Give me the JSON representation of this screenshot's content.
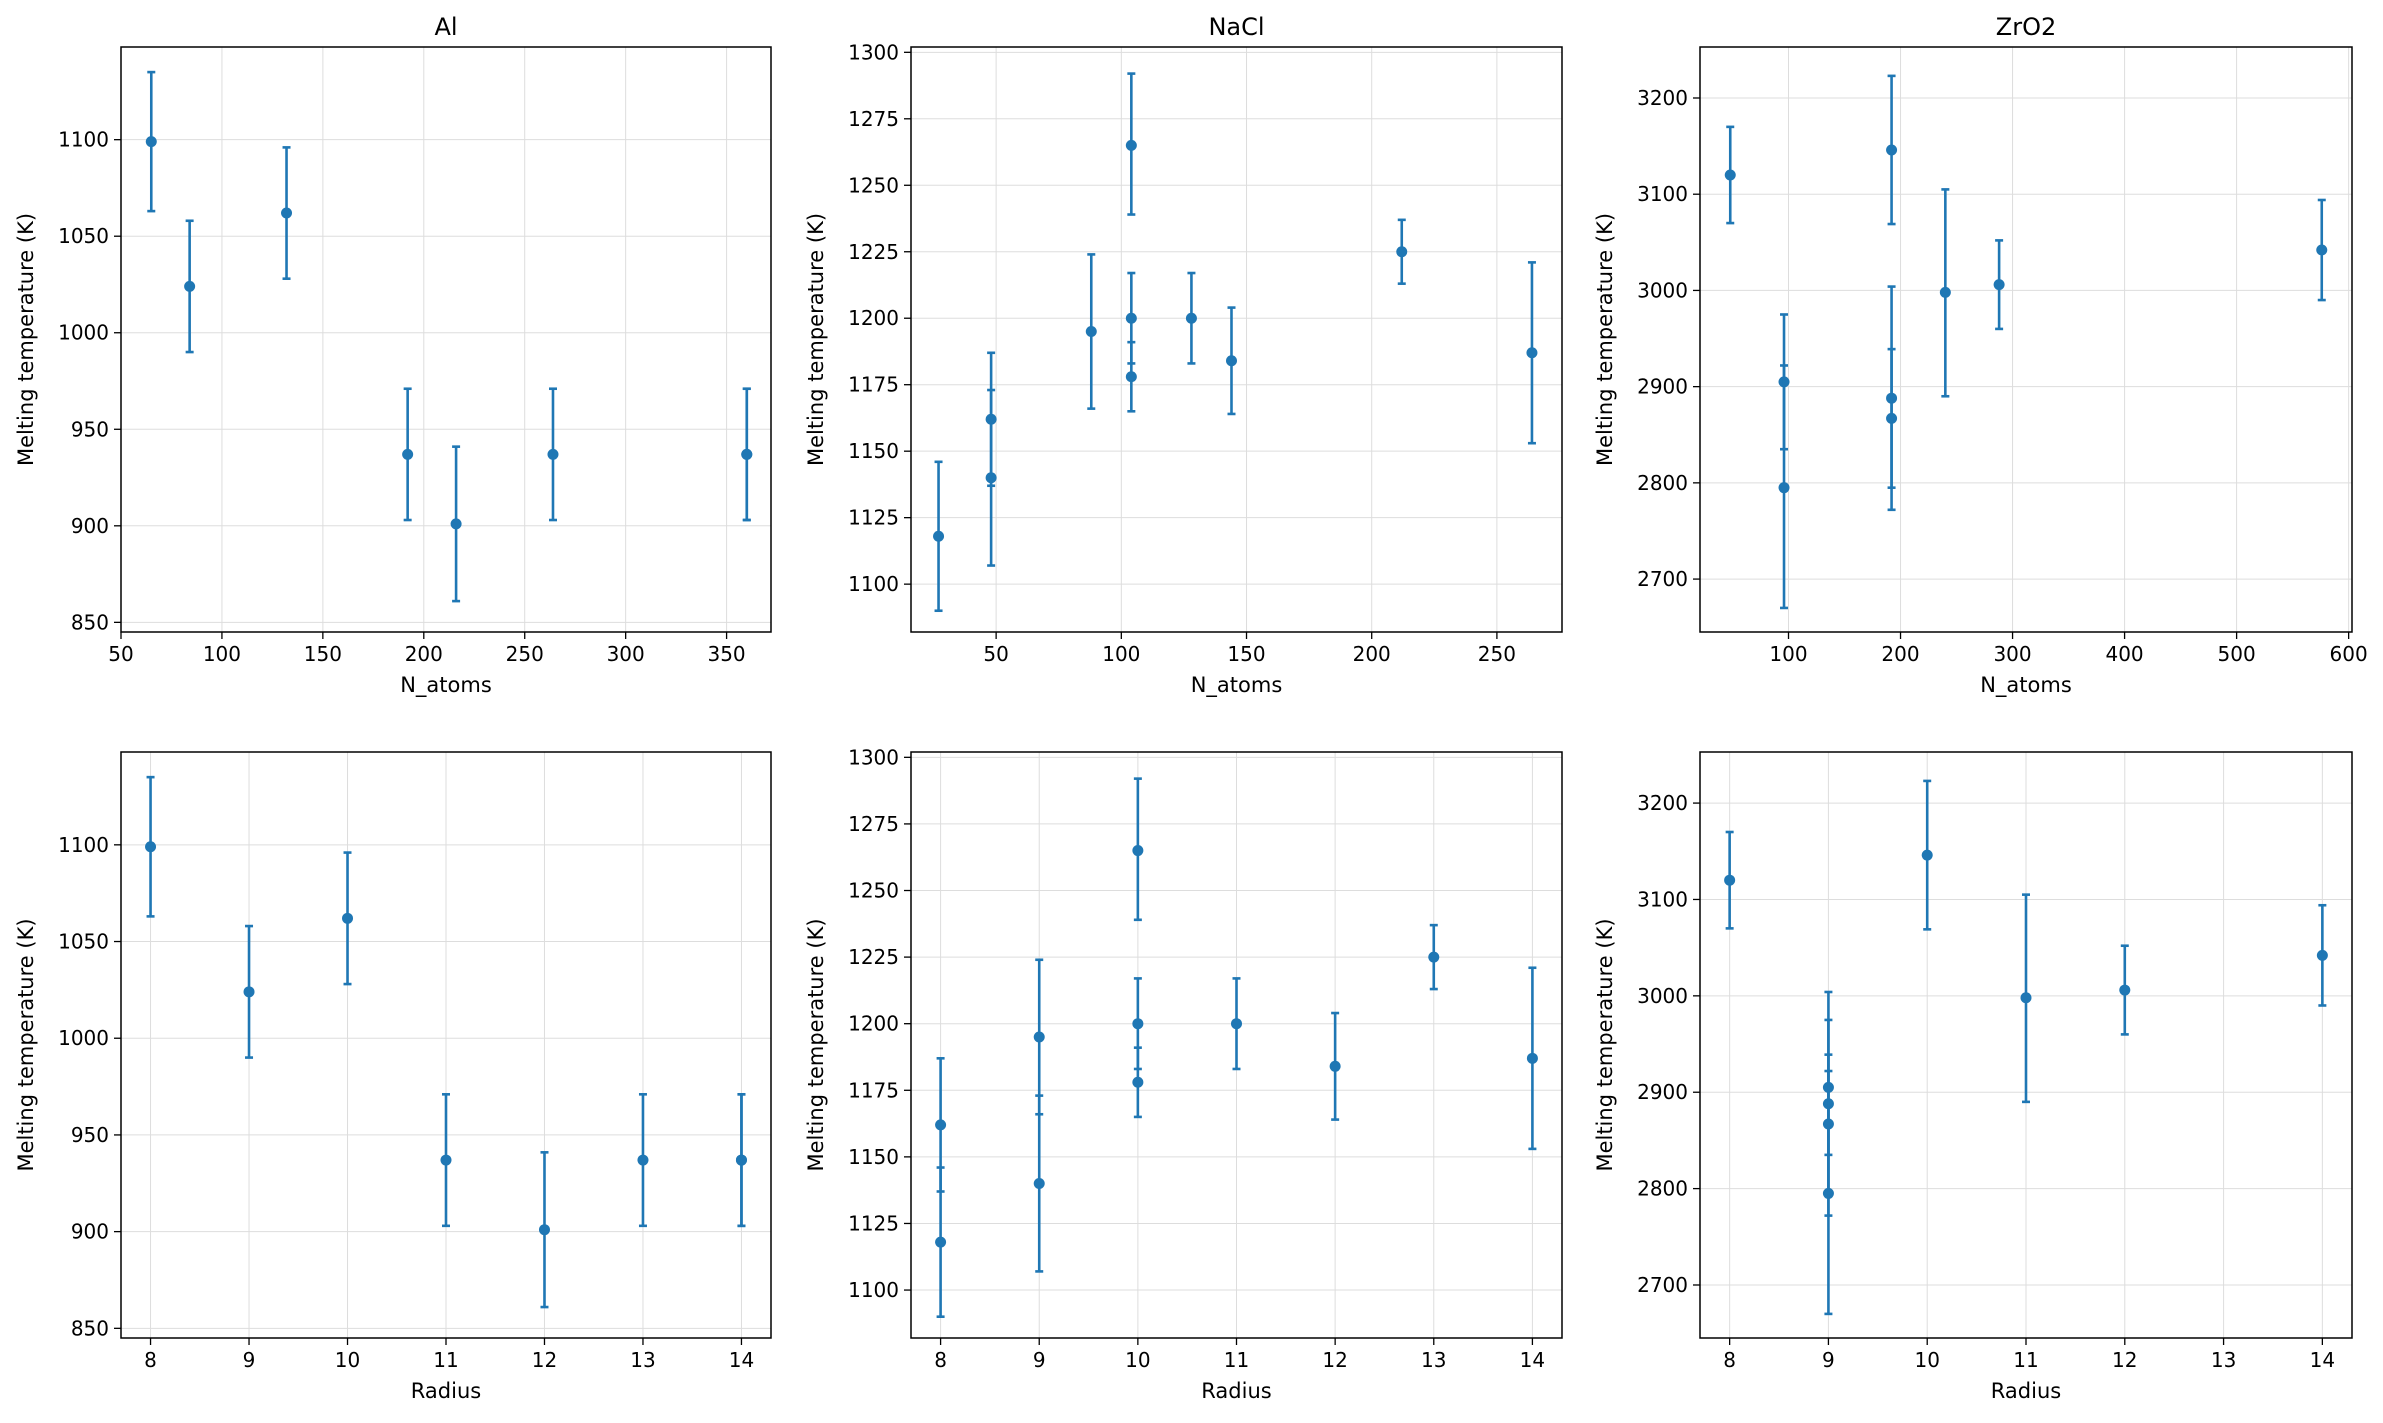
{
  "colors": {
    "series": "#1f77b4",
    "grid": "#dddddd",
    "axis": "#000000"
  },
  "chart_data": [
    {
      "type": "scatter",
      "errorbars": true,
      "grid": true,
      "title": "Al",
      "xlabel": "N_atoms",
      "ylabel": "Melting temperature (K)",
      "xlim": [
        50,
        372
      ],
      "ylim": [
        845,
        1148
      ],
      "xticks": [
        50,
        100,
        150,
        200,
        250,
        300,
        350
      ],
      "yticks": [
        850,
        900,
        950,
        1000,
        1050,
        1100
      ],
      "points": [
        {
          "x": 65,
          "y": 1099,
          "lo": 1063,
          "hi": 1135
        },
        {
          "x": 84,
          "y": 1024,
          "lo": 990,
          "hi": 1058
        },
        {
          "x": 132,
          "y": 1062,
          "lo": 1028,
          "hi": 1096
        },
        {
          "x": 192,
          "y": 937,
          "lo": 903,
          "hi": 971
        },
        {
          "x": 216,
          "y": 901,
          "lo": 861,
          "hi": 941
        },
        {
          "x": 264,
          "y": 937,
          "lo": 903,
          "hi": 971
        },
        {
          "x": 360,
          "y": 937,
          "lo": 903,
          "hi": 971
        },
        {
          "x": 360,
          "y": 937,
          "lo": 903,
          "hi": 971
        }
      ]
    },
    {
      "type": "scatter",
      "errorbars": true,
      "grid": true,
      "title": "NaCl",
      "xlabel": "N_atoms",
      "ylabel": "Melting temperature (K)",
      "xlim": [
        16,
        276
      ],
      "ylim": [
        1082,
        1302
      ],
      "xticks": [
        50,
        100,
        150,
        200,
        250
      ],
      "yticks": [
        1100,
        1125,
        1150,
        1175,
        1200,
        1225,
        1250,
        1275,
        1300
      ],
      "points": [
        {
          "x": 27,
          "y": 1118,
          "lo": 1090,
          "hi": 1146
        },
        {
          "x": 48,
          "y": 1140,
          "lo": 1107,
          "hi": 1173
        },
        {
          "x": 48,
          "y": 1162,
          "lo": 1137,
          "hi": 1187
        },
        {
          "x": 88,
          "y": 1195,
          "lo": 1166,
          "hi": 1224
        },
        {
          "x": 104,
          "y": 1265,
          "lo": 1239,
          "hi": 1292
        },
        {
          "x": 104,
          "y": 1200,
          "lo": 1183,
          "hi": 1217
        },
        {
          "x": 104,
          "y": 1178,
          "lo": 1165,
          "hi": 1191
        },
        {
          "x": 128,
          "y": 1200,
          "lo": 1183,
          "hi": 1217
        },
        {
          "x": 144,
          "y": 1184,
          "lo": 1164,
          "hi": 1204
        },
        {
          "x": 212,
          "y": 1225,
          "lo": 1213,
          "hi": 1237
        },
        {
          "x": 264,
          "y": 1187,
          "lo": 1153,
          "hi": 1221
        }
      ]
    },
    {
      "type": "scatter",
      "errorbars": true,
      "grid": true,
      "title": "ZrO2",
      "xlabel": "N_atoms",
      "ylabel": "Melting temperature (K)",
      "xlim": [
        21,
        603
      ],
      "ylim": [
        2645,
        3253
      ],
      "xticks": [
        100,
        200,
        300,
        400,
        500,
        600
      ],
      "yticks": [
        2700,
        2800,
        2900,
        3000,
        3100,
        3200
      ],
      "points": [
        {
          "x": 48,
          "y": 3120,
          "lo": 3070,
          "hi": 3170
        },
        {
          "x": 96,
          "y": 2905,
          "lo": 2835,
          "hi": 2975
        },
        {
          "x": 96,
          "y": 2795,
          "lo": 2670,
          "hi": 2922
        },
        {
          "x": 192,
          "y": 3146,
          "lo": 3069,
          "hi": 3223
        },
        {
          "x": 192,
          "y": 2888,
          "lo": 2772,
          "hi": 3004
        },
        {
          "x": 192,
          "y": 2867,
          "lo": 2795,
          "hi": 2939
        },
        {
          "x": 240,
          "y": 2998,
          "lo": 2890,
          "hi": 3105
        },
        {
          "x": 288,
          "y": 3006,
          "lo": 2960,
          "hi": 3052
        },
        {
          "x": 576,
          "y": 3042,
          "lo": 2990,
          "hi": 3094
        }
      ]
    },
    {
      "type": "scatter",
      "errorbars": true,
      "grid": true,
      "title": "",
      "xlabel": "Radius",
      "ylabel": "Melting temperature (K)",
      "xlim": [
        7.7,
        14.3
      ],
      "ylim": [
        845,
        1148
      ],
      "xticks": [
        8,
        9,
        10,
        11,
        12,
        13,
        14
      ],
      "yticks": [
        850,
        900,
        950,
        1000,
        1050,
        1100
      ],
      "points": [
        {
          "x": 8,
          "y": 1099,
          "lo": 1063,
          "hi": 1135
        },
        {
          "x": 9,
          "y": 1024,
          "lo": 990,
          "hi": 1058
        },
        {
          "x": 10,
          "y": 1062,
          "lo": 1028,
          "hi": 1096
        },
        {
          "x": 11,
          "y": 937,
          "lo": 903,
          "hi": 971
        },
        {
          "x": 12,
          "y": 901,
          "lo": 861,
          "hi": 941
        },
        {
          "x": 13,
          "y": 937,
          "lo": 903,
          "hi": 971
        },
        {
          "x": 14,
          "y": 937,
          "lo": 903,
          "hi": 971
        },
        {
          "x": 14,
          "y": 937,
          "lo": 903,
          "hi": 971
        }
      ]
    },
    {
      "type": "scatter",
      "errorbars": true,
      "grid": true,
      "title": "",
      "xlabel": "Radius",
      "ylabel": "Melting temperature (K)",
      "xlim": [
        7.7,
        14.3
      ],
      "ylim": [
        1082,
        1302
      ],
      "xticks": [
        8,
        9,
        10,
        11,
        12,
        13,
        14
      ],
      "yticks": [
        1100,
        1125,
        1150,
        1175,
        1200,
        1225,
        1250,
        1275,
        1300
      ],
      "points": [
        {
          "x": 8,
          "y": 1118,
          "lo": 1090,
          "hi": 1146
        },
        {
          "x": 8,
          "y": 1162,
          "lo": 1137,
          "hi": 1187
        },
        {
          "x": 9,
          "y": 1140,
          "lo": 1107,
          "hi": 1173
        },
        {
          "x": 9,
          "y": 1195,
          "lo": 1166,
          "hi": 1224
        },
        {
          "x": 10,
          "y": 1265,
          "lo": 1239,
          "hi": 1292
        },
        {
          "x": 10,
          "y": 1200,
          "lo": 1183,
          "hi": 1217
        },
        {
          "x": 10,
          "y": 1178,
          "lo": 1165,
          "hi": 1191
        },
        {
          "x": 11,
          "y": 1200,
          "lo": 1183,
          "hi": 1217
        },
        {
          "x": 12,
          "y": 1184,
          "lo": 1164,
          "hi": 1204
        },
        {
          "x": 13,
          "y": 1225,
          "lo": 1213,
          "hi": 1237
        },
        {
          "x": 14,
          "y": 1187,
          "lo": 1153,
          "hi": 1221
        }
      ]
    },
    {
      "type": "scatter",
      "errorbars": true,
      "grid": true,
      "title": "",
      "xlabel": "Radius",
      "ylabel": "Melting temperature (K)",
      "xlim": [
        7.7,
        14.3
      ],
      "ylim": [
        2645,
        3253
      ],
      "xticks": [
        8,
        9,
        10,
        11,
        12,
        13,
        14
      ],
      "yticks": [
        2700,
        2800,
        2900,
        3000,
        3100,
        3200
      ],
      "points": [
        {
          "x": 8,
          "y": 3120,
          "lo": 3070,
          "hi": 3170
        },
        {
          "x": 9,
          "y": 2905,
          "lo": 2835,
          "hi": 2975
        },
        {
          "x": 9,
          "y": 2795,
          "lo": 2670,
          "hi": 2922
        },
        {
          "x": 9,
          "y": 2888,
          "lo": 2772,
          "hi": 3004
        },
        {
          "x": 9,
          "y": 2867,
          "lo": 2795,
          "hi": 2939
        },
        {
          "x": 10,
          "y": 3146,
          "lo": 3069,
          "hi": 3223
        },
        {
          "x": 11,
          "y": 2998,
          "lo": 2890,
          "hi": 3105
        },
        {
          "x": 12,
          "y": 3006,
          "lo": 2960,
          "hi": 3052
        },
        {
          "x": 14,
          "y": 3042,
          "lo": 2990,
          "hi": 3094
        }
      ]
    }
  ]
}
